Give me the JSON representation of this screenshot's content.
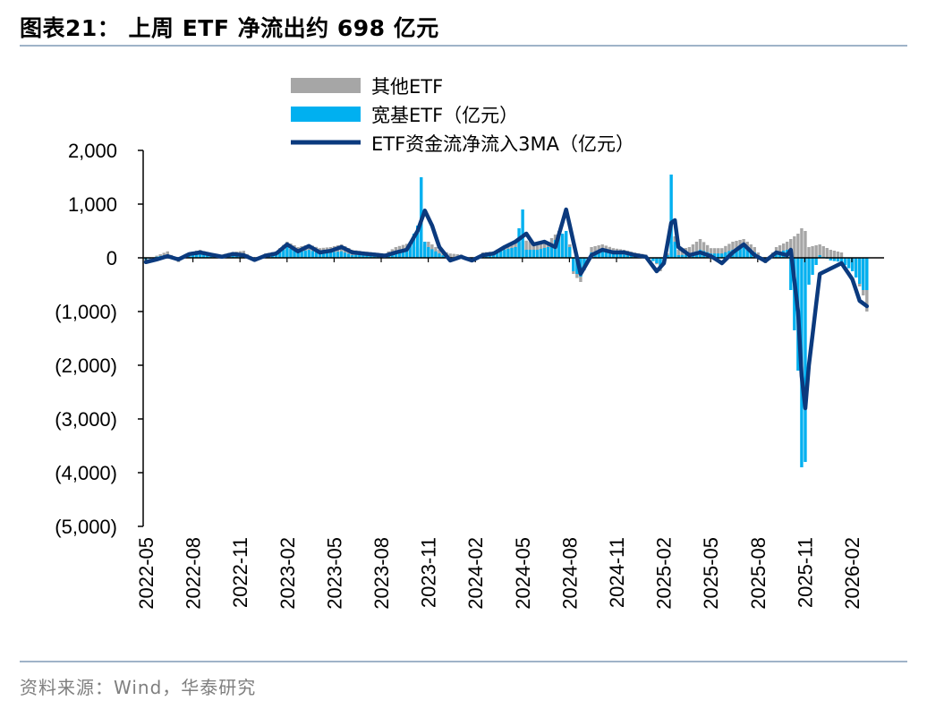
{
  "title": "图表21：  上周 ETF 净流出约 698 亿元",
  "source": "资料来源：Wind，华泰研究",
  "chart_data": {
    "type": "bar+line",
    "title": "图表21：  上周 ETF 净流出约 698 亿元",
    "ylim": [
      -5000,
      2000
    ],
    "yticks": [
      2000,
      1000,
      0,
      -1000,
      -2000,
      -3000,
      -4000,
      -5000
    ],
    "ytick_labels": [
      "2,000",
      "1,000",
      "0",
      "(1,000)",
      "(2,000)",
      "(3,000)",
      "(4,000)",
      "(5,000)"
    ],
    "xtick_labels": [
      "2022-05",
      "2022-08",
      "2022-11",
      "2023-02",
      "2023-05",
      "2023-08",
      "2023-11",
      "2024-02",
      "2024-05",
      "2024-08",
      "2024-11",
      "2025-02",
      "2025-05",
      "2025-08",
      "2025-11",
      "2026-02"
    ],
    "legend_position": "top-center",
    "grid": false,
    "colors": {
      "other": "#a6a6a6",
      "broad": "#00b0f0",
      "ma": "#0b3a7e"
    },
    "weeks_per_month": 4.33,
    "series": [
      {
        "name": "其他ETF",
        "kind": "bar",
        "anchors": [
          [
            0,
            -60
          ],
          [
            3,
            40
          ],
          [
            6,
            120
          ],
          [
            9,
            -80
          ],
          [
            12,
            100
          ],
          [
            15,
            150
          ],
          [
            18,
            80
          ],
          [
            21,
            60
          ],
          [
            24,
            110
          ],
          [
            27,
            130
          ],
          [
            30,
            -50
          ],
          [
            33,
            80
          ],
          [
            36,
            120
          ],
          [
            39,
            300
          ],
          [
            42,
            200
          ],
          [
            45,
            250
          ],
          [
            48,
            180
          ],
          [
            51,
            200
          ],
          [
            54,
            250
          ],
          [
            57,
            150
          ],
          [
            60,
            120
          ],
          [
            63,
            100
          ],
          [
            66,
            80
          ],
          [
            69,
            200
          ],
          [
            72,
            260
          ],
          [
            75,
            180
          ],
          [
            78,
            300
          ],
          [
            81,
            150
          ],
          [
            84,
            80
          ],
          [
            87,
            60
          ],
          [
            90,
            -80
          ],
          [
            93,
            100
          ],
          [
            96,
            120
          ],
          [
            99,
            220
          ],
          [
            102,
            280
          ],
          [
            105,
            320
          ],
          [
            108,
            280
          ],
          [
            111,
            300
          ],
          [
            114,
            500
          ],
          [
            117,
            250
          ],
          [
            118,
            -300
          ],
          [
            120,
            -450
          ],
          [
            123,
            200
          ],
          [
            126,
            250
          ],
          [
            129,
            180
          ],
          [
            132,
            150
          ],
          [
            135,
            100
          ],
          [
            138,
            60
          ],
          [
            141,
            -120
          ],
          [
            142,
            -250
          ],
          [
            144,
            80
          ],
          [
            146,
            400
          ],
          [
            147,
            150
          ],
          [
            150,
            200
          ],
          [
            153,
            350
          ],
          [
            156,
            180
          ],
          [
            159,
            180
          ],
          [
            162,
            300
          ],
          [
            165,
            350
          ],
          [
            168,
            200
          ],
          [
            171,
            -100
          ],
          [
            174,
            200
          ],
          [
            177,
            300
          ],
          [
            180,
            450
          ],
          [
            181,
            550
          ],
          [
            182,
            500
          ],
          [
            183,
            200
          ],
          [
            186,
            250
          ],
          [
            189,
            150
          ],
          [
            192,
            100
          ],
          [
            195,
            -200
          ],
          [
            198,
            -700
          ],
          [
            199,
            -1000
          ]
        ]
      },
      {
        "name": "宽基ETF（亿元）",
        "kind": "bar",
        "anchors": [
          [
            0,
            -30
          ],
          [
            3,
            20
          ],
          [
            6,
            60
          ],
          [
            9,
            -40
          ],
          [
            12,
            50
          ],
          [
            15,
            80
          ],
          [
            18,
            30
          ],
          [
            21,
            20
          ],
          [
            24,
            40
          ],
          [
            27,
            60
          ],
          [
            30,
            -40
          ],
          [
            33,
            30
          ],
          [
            36,
            60
          ],
          [
            39,
            200
          ],
          [
            42,
            100
          ],
          [
            45,
            150
          ],
          [
            48,
            80
          ],
          [
            51,
            100
          ],
          [
            54,
            120
          ],
          [
            57,
            50
          ],
          [
            60,
            60
          ],
          [
            63,
            40
          ],
          [
            66,
            30
          ],
          [
            69,
            100
          ],
          [
            72,
            150
          ],
          [
            75,
            600
          ],
          [
            76,
            1500
          ],
          [
            77,
            300
          ],
          [
            78,
            200
          ],
          [
            81,
            80
          ],
          [
            84,
            -20
          ],
          [
            87,
            20
          ],
          [
            90,
            -60
          ],
          [
            93,
            60
          ],
          [
            96,
            80
          ],
          [
            99,
            150
          ],
          [
            102,
            200
          ],
          [
            104,
            900
          ],
          [
            105,
            150
          ],
          [
            108,
            150
          ],
          [
            111,
            200
          ],
          [
            114,
            400
          ],
          [
            116,
            500
          ],
          [
            117,
            200
          ],
          [
            118,
            -250
          ],
          [
            120,
            -350
          ],
          [
            123,
            100
          ],
          [
            126,
            120
          ],
          [
            129,
            80
          ],
          [
            132,
            60
          ],
          [
            135,
            30
          ],
          [
            138,
            20
          ],
          [
            141,
            -100
          ],
          [
            142,
            -200
          ],
          [
            144,
            50
          ],
          [
            145,
            1550
          ],
          [
            146,
            300
          ],
          [
            147,
            50
          ],
          [
            150,
            60
          ],
          [
            153,
            150
          ],
          [
            156,
            80
          ],
          [
            159,
            80
          ],
          [
            162,
            150
          ],
          [
            165,
            250
          ],
          [
            168,
            100
          ],
          [
            171,
            -60
          ],
          [
            174,
            100
          ],
          [
            177,
            150
          ],
          [
            180,
            -2100
          ],
          [
            181,
            -3900
          ],
          [
            182,
            -3800
          ],
          [
            183,
            -500
          ],
          [
            186,
            50
          ],
          [
            189,
            -50
          ],
          [
            192,
            -80
          ],
          [
            195,
            -250
          ],
          [
            198,
            -600
          ],
          [
            199,
            -600
          ]
        ]
      },
      {
        "name": "ETF资金流净流入3MA（亿元）",
        "kind": "line",
        "anchors": [
          [
            0,
            -80
          ],
          [
            3,
            -30
          ],
          [
            6,
            30
          ],
          [
            9,
            -30
          ],
          [
            12,
            70
          ],
          [
            15,
            100
          ],
          [
            18,
            60
          ],
          [
            21,
            20
          ],
          [
            24,
            70
          ],
          [
            27,
            50
          ],
          [
            30,
            -40
          ],
          [
            33,
            40
          ],
          [
            36,
            80
          ],
          [
            39,
            250
          ],
          [
            42,
            120
          ],
          [
            45,
            220
          ],
          [
            48,
            100
          ],
          [
            51,
            130
          ],
          [
            54,
            200
          ],
          [
            57,
            100
          ],
          [
            60,
            80
          ],
          [
            63,
            60
          ],
          [
            66,
            40
          ],
          [
            69,
            100
          ],
          [
            72,
            150
          ],
          [
            75,
            500
          ],
          [
            77,
            880
          ],
          [
            79,
            600
          ],
          [
            81,
            200
          ],
          [
            84,
            -50
          ],
          [
            87,
            20
          ],
          [
            90,
            -50
          ],
          [
            93,
            50
          ],
          [
            96,
            80
          ],
          [
            99,
            200
          ],
          [
            102,
            300
          ],
          [
            105,
            450
          ],
          [
            107,
            250
          ],
          [
            110,
            300
          ],
          [
            113,
            200
          ],
          [
            116,
            900
          ],
          [
            118,
            300
          ],
          [
            120,
            -300
          ],
          [
            123,
            50
          ],
          [
            126,
            150
          ],
          [
            129,
            100
          ],
          [
            132,
            100
          ],
          [
            135,
            50
          ],
          [
            138,
            20
          ],
          [
            141,
            -250
          ],
          [
            143,
            -100
          ],
          [
            145,
            650
          ],
          [
            146,
            700
          ],
          [
            147,
            200
          ],
          [
            150,
            50
          ],
          [
            153,
            100
          ],
          [
            156,
            30
          ],
          [
            159,
            -100
          ],
          [
            162,
            100
          ],
          [
            165,
            250
          ],
          [
            168,
            50
          ],
          [
            171,
            -60
          ],
          [
            174,
            100
          ],
          [
            177,
            50
          ],
          [
            178,
            150
          ],
          [
            180,
            -1000
          ],
          [
            181,
            -2200
          ],
          [
            182,
            -2800
          ],
          [
            183,
            -2000
          ],
          [
            186,
            -300
          ],
          [
            189,
            -200
          ],
          [
            192,
            -100
          ],
          [
            195,
            -400
          ],
          [
            197,
            -800
          ],
          [
            199,
            -900
          ]
        ]
      }
    ]
  }
}
